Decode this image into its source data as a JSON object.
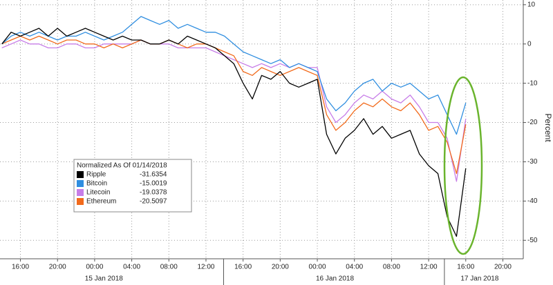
{
  "chart_data": {
    "type": "line",
    "legend_title": "Normalized As Of 01/14/2018",
    "y_label": "Percent",
    "x": [
      14,
      15,
      16,
      17,
      18,
      19,
      20,
      21,
      22,
      23,
      24,
      25,
      26,
      27,
      28,
      29,
      30,
      31,
      32,
      33,
      34,
      35,
      36,
      37,
      38,
      39,
      40,
      41,
      42,
      43,
      44,
      45,
      46,
      47,
      48,
      49,
      50,
      51,
      52,
      53,
      54,
      55,
      56,
      57,
      58,
      59,
      60,
      61,
      62,
      63,
      64
    ],
    "series": [
      {
        "name": "Ripple",
        "color": "#000000",
        "legend_value": -31.6354,
        "values": [
          0,
          3,
          2,
          3,
          4,
          2,
          4,
          2,
          3,
          4,
          3,
          2,
          1,
          2,
          1,
          1,
          0,
          0,
          1,
          0,
          2,
          1,
          0,
          -1,
          -3,
          -5,
          -10,
          -14,
          -8,
          -9,
          -7,
          -10,
          -11,
          -10,
          -9,
          -23,
          -28,
          -24,
          -22,
          -19,
          -23,
          -21,
          -24,
          -23,
          -22,
          -28,
          -31,
          -33,
          -44,
          -49,
          -31.6354
        ]
      },
      {
        "name": "Bitcoin",
        "color": "#2f8ee0",
        "legend_value": -15.0019,
        "values": [
          0,
          2,
          3,
          2,
          3,
          2,
          1,
          2,
          2,
          3,
          2,
          1,
          2,
          3,
          5,
          7,
          6,
          5,
          6,
          4,
          5,
          4,
          3,
          3,
          2,
          0,
          -2,
          -3,
          -4,
          -5,
          -4,
          -6,
          -5,
          -6,
          -7,
          -14,
          -17,
          -15,
          -12,
          -10,
          -9,
          -12,
          -10,
          -11,
          -10,
          -12,
          -14,
          -13,
          -18,
          -23,
          -15.0019
        ]
      },
      {
        "name": "Litecoin",
        "color": "#c77de8",
        "legend_value": -19.0378,
        "values": [
          -1,
          0,
          1,
          0,
          0,
          -1,
          -1,
          0,
          0,
          -1,
          -1,
          0,
          0,
          0,
          0,
          1,
          0,
          0,
          0,
          -1,
          -1,
          -1,
          -1,
          -2,
          -3,
          -4,
          -5,
          -6,
          -5,
          -6,
          -5,
          -6,
          -5,
          -6,
          -6,
          -16,
          -20,
          -18,
          -15,
          -13,
          -14,
          -12,
          -14,
          -15,
          -13,
          -16,
          -20,
          -20,
          -24,
          -35,
          -19.0378
        ]
      },
      {
        "name": "Ethereum",
        "color": "#f26a1b",
        "legend_value": -20.5097,
        "values": [
          0,
          1,
          2,
          1,
          2,
          1,
          0,
          1,
          1,
          0,
          0,
          -1,
          0,
          -1,
          0,
          1,
          0,
          0,
          1,
          0,
          -1,
          0,
          0,
          -1,
          -2,
          -3,
          -7,
          -8,
          -6,
          -7,
          -8,
          -7,
          -6,
          -7,
          -8,
          -18,
          -22,
          -20,
          -17,
          -15,
          -16,
          -14,
          -16,
          -17,
          -15,
          -18,
          -22,
          -21,
          -25,
          -33,
          -20.5097
        ]
      }
    ],
    "xlim": [
      13.8,
      70.2
    ],
    "xticks": [
      {
        "value": 16,
        "label": "16:00"
      },
      {
        "value": 20,
        "label": "20:00"
      },
      {
        "value": 24,
        "label": "00:00"
      },
      {
        "value": 28,
        "label": "04:00"
      },
      {
        "value": 32,
        "label": "08:00"
      },
      {
        "value": 36,
        "label": "12:00"
      },
      {
        "value": 40,
        "label": "16:00"
      },
      {
        "value": 44,
        "label": "20:00"
      },
      {
        "value": 48,
        "label": "00:00"
      },
      {
        "value": 52,
        "label": "04:00"
      },
      {
        "value": 56,
        "label": "08:00"
      },
      {
        "value": 60,
        "label": "12:00"
      },
      {
        "value": 64,
        "label": "16:00"
      },
      {
        "value": 68,
        "label": "20:00"
      }
    ],
    "day_labels": [
      {
        "value": 25.0,
        "label": "15 Jan 2018"
      },
      {
        "value": 49.9,
        "label": "16 Jan 2018"
      },
      {
        "value": 65.5,
        "label": "17 Jan 2018"
      }
    ],
    "day_boundaries": [
      37.9,
      61.7
    ],
    "ylim": [
      -54.7,
      11.2
    ],
    "yticks": [
      10,
      0,
      -10,
      -20,
      -30,
      -40,
      -50
    ],
    "grid": true
  }
}
